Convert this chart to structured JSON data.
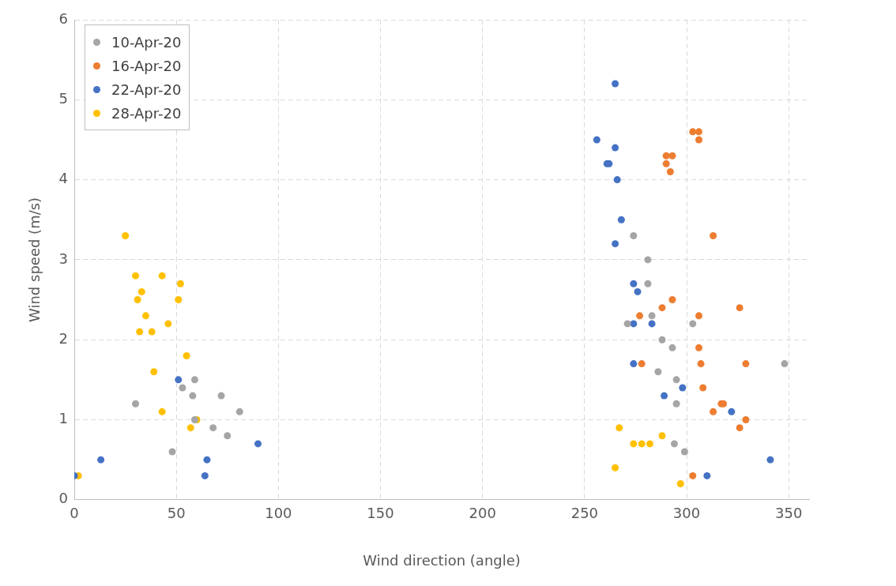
{
  "chart_data": {
    "type": "scatter",
    "xlabel": "Wind direction (angle)",
    "ylabel": "Wind speed (m/s)",
    "xlim": [
      0,
      360
    ],
    "xticks": [
      0,
      50,
      100,
      150,
      200,
      250,
      300,
      350
    ],
    "ylim": [
      0,
      6
    ],
    "yticks": [
      0,
      1,
      2,
      3,
      4,
      5,
      6
    ],
    "grid": true,
    "legend": "top left",
    "marker": "circle",
    "series": [
      {
        "name": "10-Apr-20",
        "color": "#a5a5a5",
        "x": [
          30,
          53,
          59,
          58,
          59,
          68,
          72,
          75,
          81,
          48,
          274,
          281,
          281,
          271,
          283,
          303,
          288,
          293,
          286,
          295,
          295,
          294,
          299,
          348
        ],
        "values": [
          1.2,
          1.4,
          1.5,
          1.3,
          1.0,
          0.9,
          1.3,
          0.8,
          1.1,
          0.6,
          3.3,
          3.0,
          2.7,
          2.2,
          2.3,
          2.2,
          2.0,
          1.9,
          1.6,
          1.5,
          1.2,
          0.7,
          0.6,
          1.7
        ]
      },
      {
        "name": "16-Apr-20",
        "color": "#ed7d31",
        "x": [
          303,
          306,
          306,
          290,
          293,
          290,
          292,
          313,
          293,
          326,
          288,
          277,
          306,
          306,
          307,
          278,
          329,
          308,
          317,
          318,
          313,
          329,
          326,
          303
        ],
        "values": [
          4.6,
          4.6,
          4.5,
          4.3,
          4.3,
          4.2,
          4.1,
          3.3,
          2.5,
          2.4,
          2.4,
          2.3,
          2.3,
          1.9,
          1.7,
          1.7,
          1.7,
          1.4,
          1.2,
          1.2,
          1.1,
          1.0,
          0.9,
          0.3
        ]
      },
      {
        "name": "22-Apr-20",
        "color": "#4472c4",
        "x": [
          0,
          13,
          51,
          65,
          64,
          90,
          265,
          256,
          265,
          261,
          262,
          266,
          268,
          265,
          274,
          276,
          274,
          283,
          274,
          298,
          289,
          322,
          341,
          310
        ],
        "values": [
          0.3,
          0.5,
          1.5,
          0.5,
          0.3,
          0.7,
          5.2,
          4.5,
          4.4,
          4.2,
          4.2,
          4.0,
          3.5,
          3.2,
          2.7,
          2.6,
          2.2,
          2.2,
          1.7,
          1.4,
          1.3,
          1.1,
          0.5,
          0.3
        ]
      },
      {
        "name": "28-Apr-20",
        "color": "#ffc000",
        "x": [
          25,
          30,
          43,
          52,
          33,
          31,
          51,
          35,
          46,
          32,
          38,
          55,
          39,
          43,
          60,
          57,
          2,
          267,
          288,
          274,
          278,
          282,
          265,
          297
        ],
        "values": [
          3.3,
          2.8,
          2.8,
          2.7,
          2.6,
          2.5,
          2.5,
          2.3,
          2.2,
          2.1,
          2.1,
          1.8,
          1.6,
          1.1,
          1.0,
          0.9,
          0.3,
          0.9,
          0.8,
          0.7,
          0.7,
          0.7,
          0.4,
          0.2
        ]
      }
    ]
  }
}
